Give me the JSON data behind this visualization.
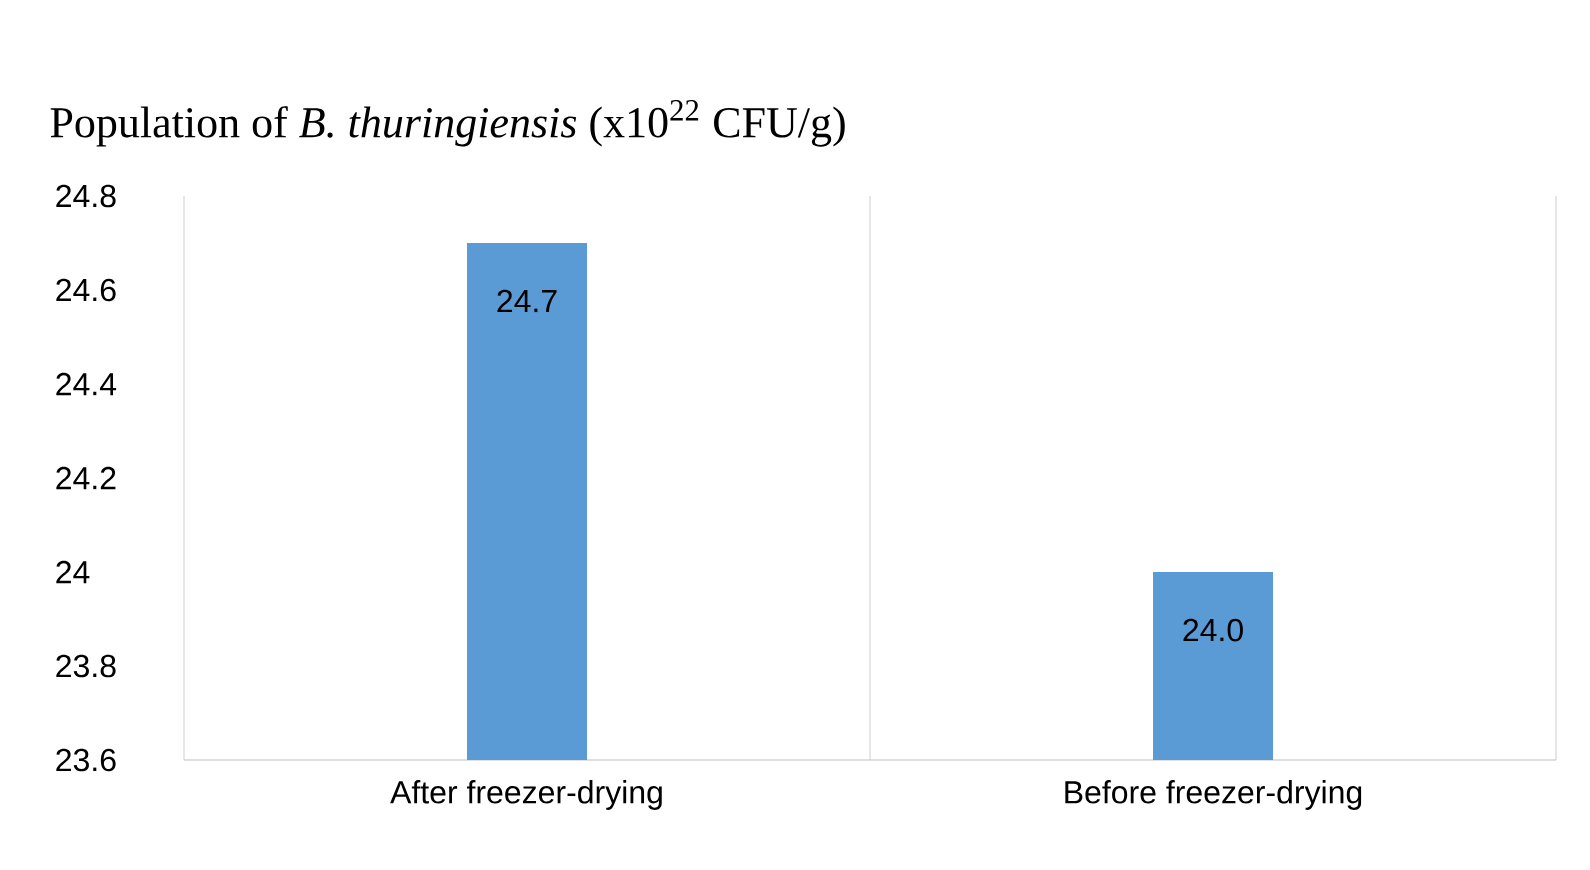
{
  "chart_data": {
    "type": "bar",
    "title": "Population of *B. thuringiensis*  (x10$^{22}$ CFU/g)",
    "categories": [
      "After freezer-drying",
      "Before freezer-drying"
    ],
    "values": [
      24.7,
      24.0
    ],
    "value_labels": [
      "24.7",
      "24.0"
    ],
    "color": "#5b9bd5",
    "ylim": [
      23.6,
      24.8
    ],
    "yticks": [
      23.6,
      23.8,
      24,
      24.2,
      24.4,
      24.6,
      24.8
    ],
    "grid": "x"
  }
}
